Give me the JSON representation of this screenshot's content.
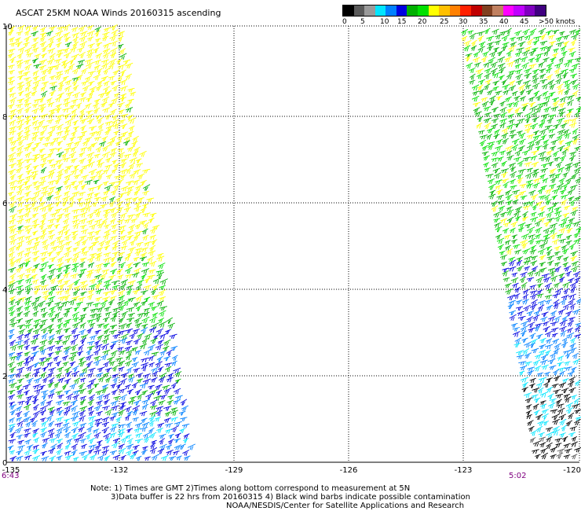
{
  "title": "ASCAT 25KM NOAA Winds 20160315 ascending",
  "legend": {
    "colors": [
      "#000000",
      "#5a5a5a",
      "#9a9a9a",
      "#00e5ff",
      "#0080ff",
      "#0000e0",
      "#00b000",
      "#00e000",
      "#ffff00",
      "#ffc000",
      "#ff8000",
      "#ff2000",
      "#c00000",
      "#804020",
      "#c08060",
      "#ff00ff",
      "#c000ff",
      "#8000c0",
      "#400080"
    ],
    "labels": [
      "0",
      "5",
      "10",
      "15",
      "20",
      "25",
      "30",
      "35",
      "40",
      "45",
      ">50 knots"
    ]
  },
  "axes": {
    "x_ticks": [
      "-135",
      "-132",
      "-129",
      "-126",
      "-123",
      "-120"
    ],
    "y_ticks": [
      "0",
      "2",
      "4",
      "6",
      "8",
      "10"
    ]
  },
  "swath_left": {
    "time": "6:43"
  },
  "swath_right": {
    "time": "5:02"
  },
  "notes": {
    "line1": "Note: 1) Times are GMT 2)Times along bottom correspond to measurement at 5N",
    "line2": "3)Data buffer is 22 hrs from 20160315 4) Black wind barbs indicate possible contamination",
    "line3": "NOAA/NESDIS/Center for Satellite Applications and Research"
  }
}
